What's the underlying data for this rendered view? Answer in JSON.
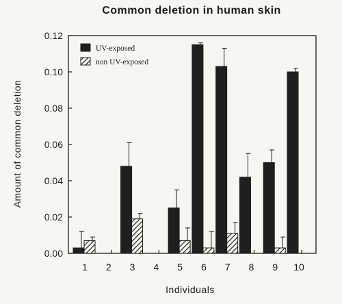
{
  "chart_data": {
    "type": "bar",
    "title": "Common deletion in human skin",
    "xlabel": "Individuals",
    "ylabel": "Amount of common deletion",
    "categories": [
      "1",
      "2",
      "3",
      "4",
      "5",
      "6",
      "7",
      "8",
      "9",
      "10"
    ],
    "ylim": [
      0,
      0.12
    ],
    "yticks": [
      "0.00",
      "0.02",
      "0.04",
      "0.06",
      "0.08",
      "0.10",
      "0.12"
    ],
    "grid": false,
    "legend_position": "top-left",
    "series": [
      {
        "name": "UV-exposed",
        "pattern": "solid",
        "color": "#1f1f1f",
        "values": [
          0.003,
          null,
          0.048,
          null,
          0.025,
          0.115,
          0.103,
          0.042,
          0.05,
          0.1
        ],
        "errors": [
          0.009,
          null,
          0.013,
          null,
          0.01,
          0.001,
          0.01,
          0.013,
          0.007,
          0.002
        ]
      },
      {
        "name": "non UV-exposed",
        "pattern": "hatched",
        "color": "#1f1f1f",
        "values": [
          0.007,
          null,
          0.019,
          null,
          0.007,
          0.003,
          0.011,
          null,
          0.003,
          null
        ],
        "errors": [
          0.002,
          null,
          0.003,
          null,
          0.007,
          0.009,
          0.006,
          null,
          0.006,
          null
        ]
      }
    ]
  }
}
